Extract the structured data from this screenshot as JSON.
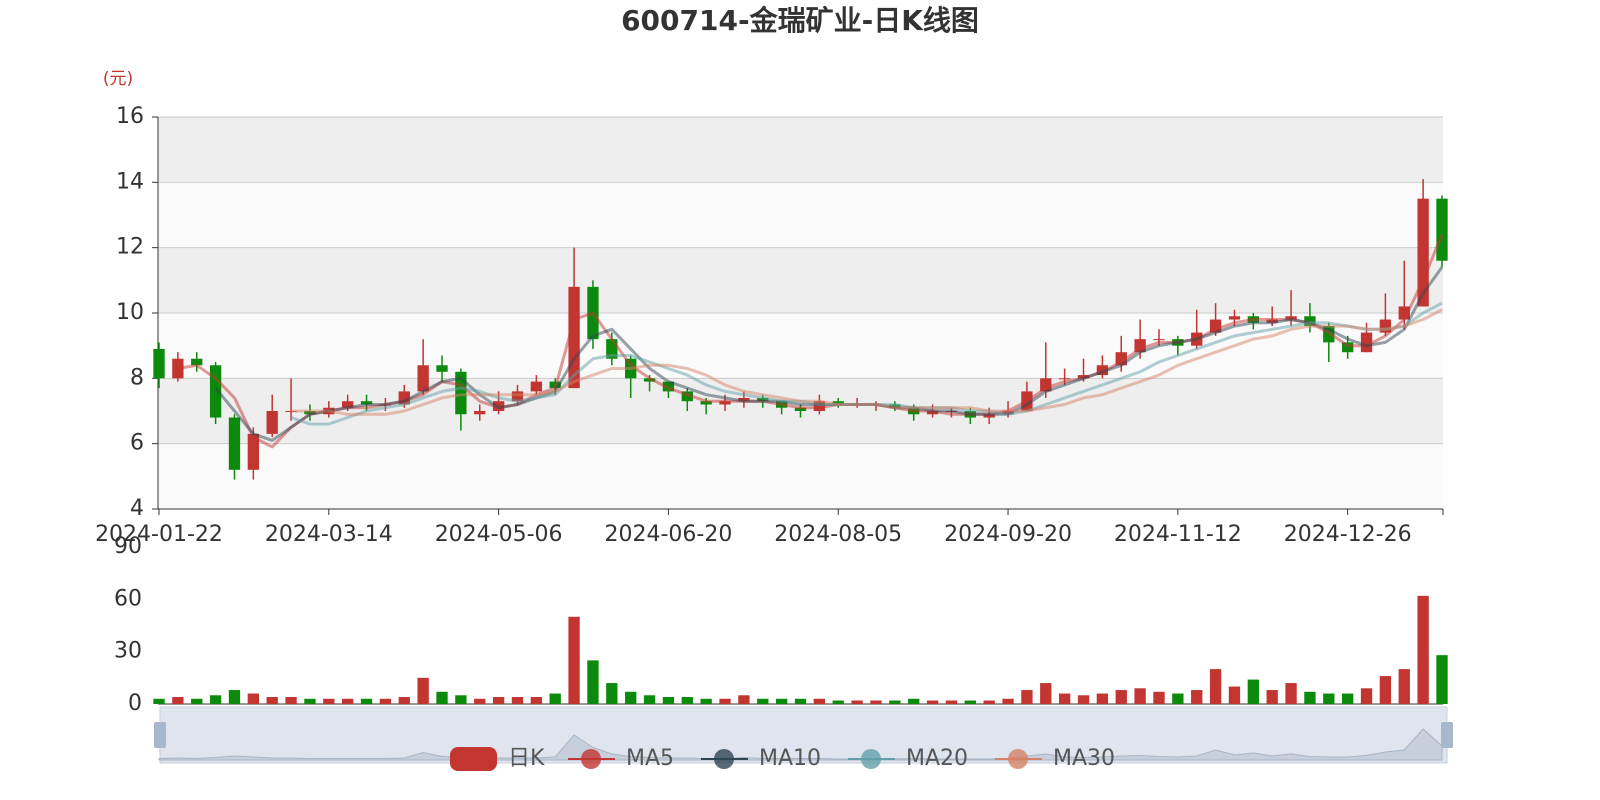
{
  "chart_data": {
    "type": "candlestick",
    "title": "600714-金瑞矿业-日K线图",
    "y_axis_label": "(元)",
    "name": "日K",
    "up_color": "#c23531",
    "down_color": "#0c8a0c",
    "ylim": [
      4,
      16
    ],
    "yticks": [
      4,
      6,
      8,
      10,
      12,
      14,
      16
    ],
    "grid": true,
    "legend": "bottom",
    "categories": [
      "2024-01-22",
      null,
      null,
      null,
      null,
      null,
      null,
      null,
      null,
      "2024-03-14",
      null,
      null,
      null,
      null,
      null,
      null,
      null,
      null,
      "2024-05-06",
      null,
      null,
      null,
      null,
      null,
      null,
      null,
      null,
      "2024-06-20",
      null,
      null,
      null,
      null,
      null,
      null,
      null,
      null,
      "2024-08-05",
      null,
      null,
      null,
      null,
      null,
      null,
      null,
      null,
      "2024-09-20",
      null,
      null,
      null,
      null,
      null,
      null,
      null,
      null,
      "2024-11-12",
      null,
      null,
      null,
      null,
      null,
      null,
      null,
      null,
      "2024-12-26",
      null,
      null,
      null,
      null,
      null
    ],
    "values": [
      [
        8.9,
        8.0,
        7.7,
        9.1
      ],
      [
        8.0,
        8.6,
        7.9,
        8.8
      ],
      [
        8.6,
        8.4,
        8.2,
        8.8
      ],
      [
        8.4,
        6.8,
        6.6,
        8.5
      ],
      [
        6.8,
        5.2,
        4.9,
        6.9
      ],
      [
        5.2,
        6.3,
        4.9,
        6.5
      ],
      [
        6.3,
        7.0,
        6.2,
        7.5
      ],
      [
        7.0,
        7.0,
        6.7,
        8.0
      ],
      [
        7.0,
        6.9,
        6.7,
        7.2
      ],
      [
        6.9,
        7.1,
        6.8,
        7.3
      ],
      [
        7.1,
        7.3,
        7.0,
        7.5
      ],
      [
        7.3,
        7.2,
        7.0,
        7.5
      ],
      [
        7.2,
        7.2,
        7.0,
        7.4
      ],
      [
        7.2,
        7.6,
        7.1,
        7.8
      ],
      [
        7.6,
        8.4,
        7.5,
        9.2
      ],
      [
        8.4,
        8.2,
        7.9,
        8.7
      ],
      [
        8.2,
        6.9,
        6.4,
        8.3
      ],
      [
        6.9,
        7.0,
        6.7,
        7.2
      ],
      [
        7.0,
        7.3,
        6.9,
        7.6
      ],
      [
        7.3,
        7.6,
        7.2,
        7.8
      ],
      [
        7.6,
        7.9,
        7.5,
        8.1
      ],
      [
        7.9,
        7.7,
        7.5,
        8.0
      ],
      [
        7.7,
        10.8,
        7.7,
        12.0
      ],
      [
        10.8,
        9.2,
        8.9,
        11.0
      ],
      [
        9.2,
        8.6,
        8.4,
        9.4
      ],
      [
        8.6,
        8.0,
        7.4,
        8.7
      ],
      [
        8.0,
        7.9,
        7.6,
        8.1
      ],
      [
        7.9,
        7.6,
        7.4,
        7.9
      ],
      [
        7.6,
        7.3,
        7.0,
        7.7
      ],
      [
        7.3,
        7.2,
        6.9,
        7.4
      ],
      [
        7.2,
        7.3,
        7.0,
        7.5
      ],
      [
        7.3,
        7.4,
        7.1,
        7.6
      ],
      [
        7.4,
        7.3,
        7.1,
        7.5
      ],
      [
        7.3,
        7.1,
        6.9,
        7.3
      ],
      [
        7.1,
        7.0,
        6.8,
        7.2
      ],
      [
        7.0,
        7.3,
        6.9,
        7.5
      ],
      [
        7.3,
        7.2,
        7.1,
        7.4
      ],
      [
        7.2,
        7.2,
        7.1,
        7.4
      ],
      [
        7.2,
        7.2,
        7.0,
        7.3
      ],
      [
        7.2,
        7.1,
        7.0,
        7.3
      ],
      [
        7.1,
        6.9,
        6.7,
        7.2
      ],
      [
        6.9,
        7.0,
        6.8,
        7.2
      ],
      [
        7.0,
        7.0,
        6.8,
        7.1
      ],
      [
        7.0,
        6.8,
        6.6,
        7.1
      ],
      [
        6.8,
        6.9,
        6.6,
        7.1
      ],
      [
        6.9,
        7.0,
        6.8,
        7.3
      ],
      [
        7.0,
        7.6,
        7.0,
        7.9
      ],
      [
        7.6,
        8.0,
        7.4,
        9.1
      ],
      [
        8.0,
        8.0,
        7.8,
        8.3
      ],
      [
        8.0,
        8.1,
        7.9,
        8.6
      ],
      [
        8.1,
        8.4,
        8.0,
        8.7
      ],
      [
        8.4,
        8.8,
        8.2,
        9.3
      ],
      [
        8.8,
        9.2,
        8.6,
        9.8
      ],
      [
        9.2,
        9.2,
        9.0,
        9.5
      ],
      [
        9.2,
        9.0,
        8.7,
        9.3
      ],
      [
        9.0,
        9.4,
        8.9,
        10.1
      ],
      [
        9.4,
        9.8,
        9.3,
        10.3
      ],
      [
        9.8,
        9.9,
        9.6,
        10.1
      ],
      [
        9.9,
        9.7,
        9.5,
        10.0
      ],
      [
        9.7,
        9.8,
        9.6,
        10.2
      ],
      [
        9.8,
        9.9,
        9.6,
        10.7
      ],
      [
        9.9,
        9.6,
        9.4,
        10.3
      ],
      [
        9.6,
        9.1,
        8.5,
        9.7
      ],
      [
        9.1,
        8.8,
        8.6,
        9.3
      ],
      [
        8.8,
        9.4,
        8.8,
        9.7
      ],
      [
        9.4,
        9.8,
        9.3,
        10.6
      ],
      [
        9.8,
        10.2,
        9.5,
        11.6
      ],
      [
        10.2,
        13.5,
        10.2,
        14.1
      ],
      [
        13.5,
        11.6,
        11.4,
        13.6
      ]
    ],
    "series": [
      {
        "name": "MA5",
        "color": "#c23531",
        "values": [
          null,
          8.3,
          8.4,
          8.0,
          7.4,
          6.2,
          5.9,
          6.5,
          6.9,
          7.0,
          7.1,
          7.1,
          7.2,
          7.3,
          7.5,
          7.9,
          7.8,
          7.3,
          7.1,
          7.2,
          7.5,
          7.7,
          9.8,
          10.0,
          9.2,
          8.4,
          8.0,
          7.7,
          7.5,
          7.3,
          7.3,
          7.3,
          7.3,
          7.2,
          7.1,
          7.1,
          7.2,
          7.2,
          7.2,
          7.1,
          7.0,
          7.0,
          6.9,
          6.9,
          6.9,
          7.0,
          7.3,
          7.7,
          7.9,
          8.0,
          8.2,
          8.5,
          8.9,
          9.1,
          9.1,
          9.2,
          9.5,
          9.7,
          9.8,
          9.8,
          9.8,
          9.7,
          9.4,
          9.0,
          9.0,
          9.3,
          9.8,
          11.0,
          12.4
        ]
      },
      {
        "name": "MA10",
        "color": "#2f4554",
        "values": [
          null,
          null,
          null,
          7.7,
          7.0,
          6.3,
          6.1,
          6.5,
          6.9,
          7.0,
          7.1,
          7.2,
          7.2,
          7.3,
          7.6,
          7.9,
          8.0,
          7.5,
          7.1,
          7.2,
          7.4,
          7.6,
          8.6,
          9.3,
          9.5,
          8.9,
          8.3,
          7.9,
          7.7,
          7.5,
          7.4,
          7.3,
          7.3,
          7.3,
          7.2,
          7.2,
          7.2,
          7.2,
          7.2,
          7.1,
          7.1,
          7.0,
          7.0,
          6.9,
          6.9,
          6.9,
          7.2,
          7.6,
          7.8,
          8.0,
          8.2,
          8.4,
          8.8,
          9.0,
          9.1,
          9.2,
          9.4,
          9.6,
          9.7,
          9.7,
          9.8,
          9.7,
          9.5,
          9.2,
          9.0,
          9.1,
          9.5,
          10.6,
          11.4
        ]
      },
      {
        "name": "MA20",
        "color": "#61a0a8",
        "values": [
          null,
          null,
          null,
          null,
          null,
          null,
          null,
          6.8,
          6.6,
          6.6,
          6.8,
          7.0,
          7.1,
          7.2,
          7.4,
          7.6,
          7.7,
          7.6,
          7.4,
          7.3,
          7.4,
          7.5,
          8.1,
          8.6,
          8.7,
          8.7,
          8.5,
          8.3,
          8.1,
          7.8,
          7.6,
          7.5,
          7.4,
          7.3,
          7.3,
          7.2,
          7.2,
          7.2,
          7.2,
          7.2,
          7.1,
          7.1,
          7.1,
          7.0,
          7.0,
          6.9,
          7.0,
          7.2,
          7.4,
          7.6,
          7.8,
          8.0,
          8.2,
          8.5,
          8.7,
          8.9,
          9.1,
          9.3,
          9.4,
          9.5,
          9.6,
          9.7,
          9.7,
          9.6,
          9.5,
          9.5,
          9.6,
          10.0,
          10.3
        ]
      },
      {
        "name": "MA30",
        "color": "#d48265",
        "values": [
          null,
          null,
          null,
          null,
          null,
          null,
          null,
          7.0,
          7.0,
          7.0,
          6.9,
          6.9,
          6.9,
          7.0,
          7.2,
          7.4,
          7.5,
          7.5,
          7.5,
          7.5,
          7.5,
          7.6,
          7.9,
          8.1,
          8.3,
          8.3,
          8.4,
          8.4,
          8.3,
          8.1,
          7.8,
          7.6,
          7.5,
          7.4,
          7.3,
          7.3,
          7.2,
          7.2,
          7.2,
          7.1,
          7.1,
          7.1,
          7.1,
          7.1,
          7.0,
          7.0,
          7.0,
          7.1,
          7.2,
          7.4,
          7.5,
          7.7,
          7.9,
          8.1,
          8.4,
          8.6,
          8.8,
          9.0,
          9.2,
          9.3,
          9.5,
          9.6,
          9.6,
          9.6,
          9.5,
          9.5,
          9.6,
          9.8,
          10.1
        ]
      }
    ],
    "volume": {
      "type": "bar",
      "ylim": [
        0,
        90
      ],
      "yticks": [
        0,
        30,
        60,
        90
      ],
      "values": [
        3,
        4,
        3,
        5,
        8,
        6,
        4,
        4,
        3,
        3,
        3,
        3,
        3,
        4,
        15,
        7,
        5,
        3,
        4,
        4,
        4,
        6,
        50,
        25,
        12,
        7,
        5,
        4,
        4,
        3,
        3,
        5,
        3,
        3,
        3,
        3,
        2,
        2,
        2,
        2,
        3,
        2,
        2,
        2,
        2,
        3,
        8,
        12,
        6,
        5,
        6,
        8,
        9,
        7,
        6,
        8,
        20,
        10,
        14,
        8,
        12,
        7,
        6,
        6,
        9,
        16,
        20,
        62,
        28
      ]
    }
  }
}
